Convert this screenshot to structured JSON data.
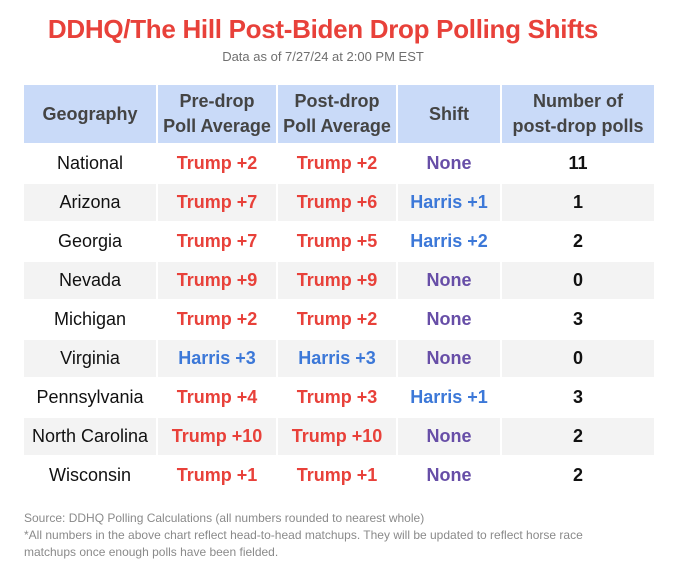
{
  "title": "DDHQ/The Hill Post-Biden Drop Polling Shifts",
  "subtitle": "Data as of 7/27/24 at 2:00 PM EST",
  "colors": {
    "trump": "#e8413a",
    "harris": "#3c78d8",
    "none": "#674ea7",
    "header_bg": "#c9daf8",
    "stripe_bg": "#f3f3f3"
  },
  "chart_data": {
    "type": "table",
    "columns": [
      {
        "line1": "Geography",
        "line2": ""
      },
      {
        "line1": "Pre-drop",
        "line2": "Poll Average"
      },
      {
        "line1": "Post-drop",
        "line2": "Poll Average"
      },
      {
        "line1": "Shift",
        "line2": ""
      },
      {
        "line1": "Number of",
        "line2": "post-drop polls"
      }
    ],
    "rows": [
      {
        "geography": "National",
        "pre": "Trump +2",
        "post": "Trump +2",
        "shift": "None",
        "polls": "11"
      },
      {
        "geography": "Arizona",
        "pre": "Trump +7",
        "post": "Trump +6",
        "shift": "Harris +1",
        "polls": "1"
      },
      {
        "geography": "Georgia",
        "pre": "Trump +7",
        "post": "Trump +5",
        "shift": "Harris +2",
        "polls": "2"
      },
      {
        "geography": "Nevada",
        "pre": "Trump +9",
        "post": "Trump +9",
        "shift": "None",
        "polls": "0"
      },
      {
        "geography": "Michigan",
        "pre": "Trump +2",
        "post": "Trump +2",
        "shift": "None",
        "polls": "3"
      },
      {
        "geography": "Virginia",
        "pre": "Harris +3",
        "post": "Harris +3",
        "shift": "None",
        "polls": "0"
      },
      {
        "geography": "Pennsylvania",
        "pre": "Trump +4",
        "post": "Trump +3",
        "shift": "Harris +1",
        "polls": "3"
      },
      {
        "geography": "North Carolina",
        "pre": "Trump +10",
        "post": "Trump +10",
        "shift": "None",
        "polls": "2"
      },
      {
        "geography": "Wisconsin",
        "pre": "Trump +1",
        "post": "Trump +1",
        "shift": "None",
        "polls": "2"
      }
    ]
  },
  "footer": {
    "source": "Source: DDHQ Polling Calculations (all numbers rounded to nearest whole)",
    "note_line1": "*All numbers in the above chart reflect head-to-head matchups. They will be updated to reflect horse race",
    "note_line2": "matchups once enough polls have been fielded."
  }
}
